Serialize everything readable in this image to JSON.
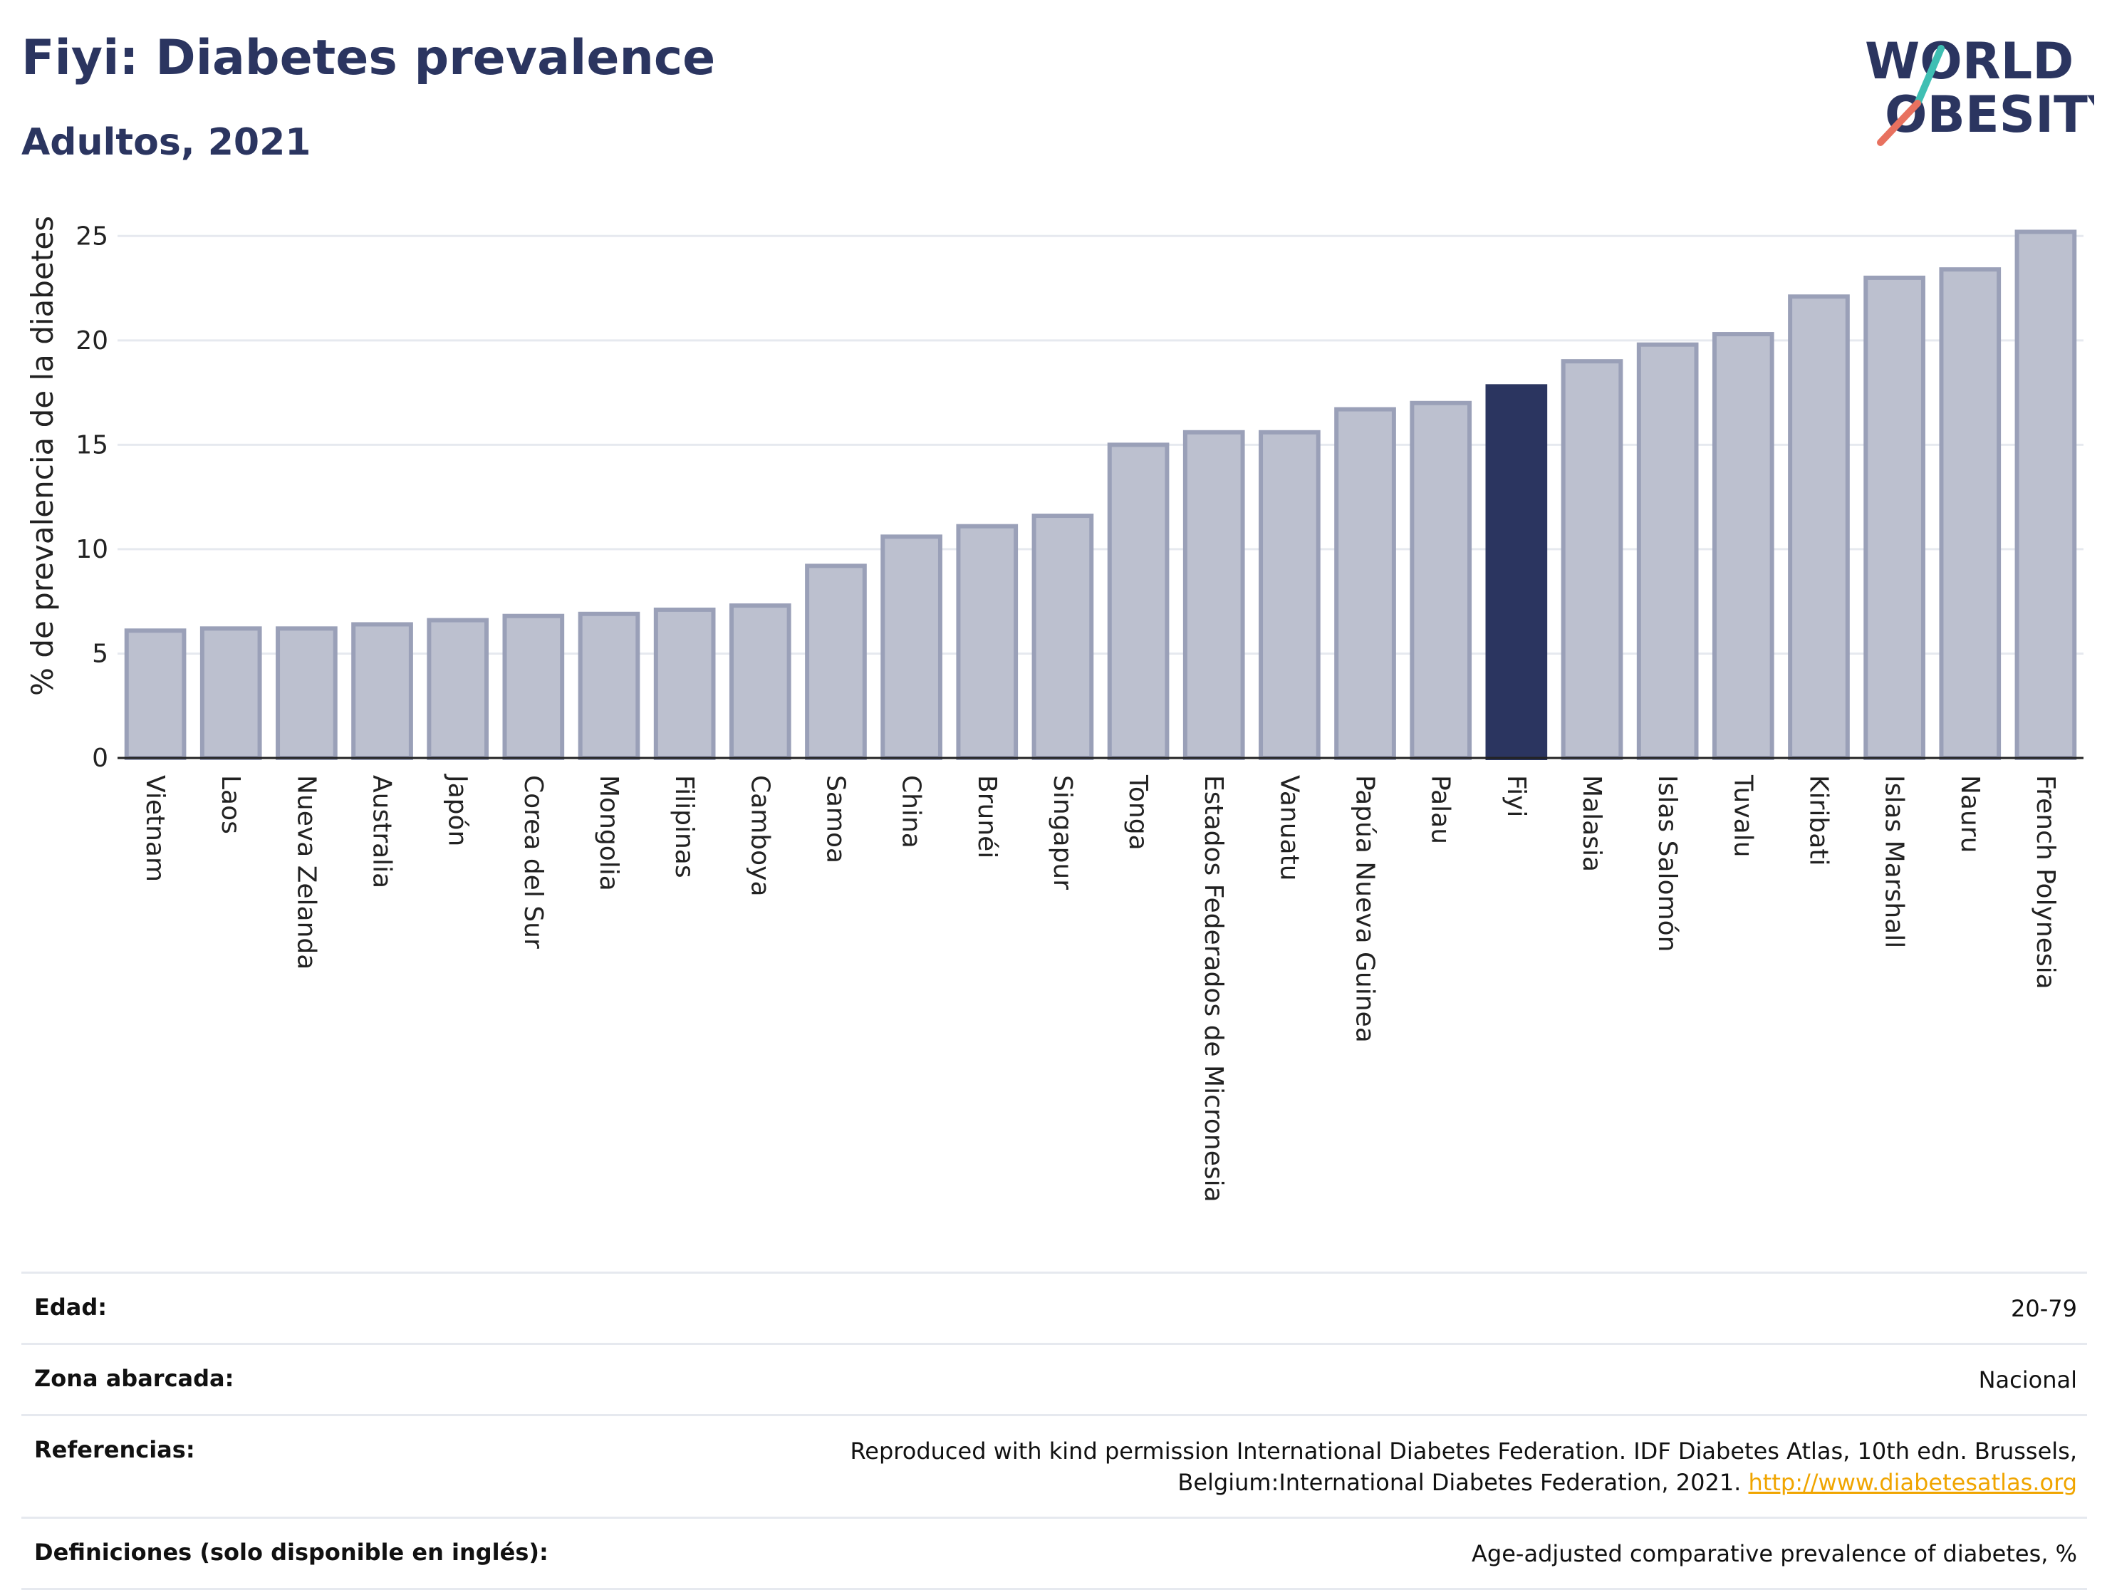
{
  "header": {
    "title": "Fiyi: Diabetes prevalence",
    "subtitle": "Adultos, 2021"
  },
  "logo": {
    "line1": "WORLD",
    "line2": "OBESITY",
    "accent_teal": "#3fbfb3",
    "accent_coral": "#e8715f"
  },
  "colors": {
    "bar": "#bcc0cf",
    "bar_border": "#9aa0b8",
    "highlight": "#2b3560",
    "grid": "#e6e9ef"
  },
  "chart_data": {
    "type": "bar",
    "ylabel": "% de prevalencia de la diabetes",
    "ylim": [
      0,
      26
    ],
    "yticks": [
      0,
      5,
      10,
      15,
      20,
      25
    ],
    "grid": true,
    "highlight": "Fiyi",
    "categories": [
      "Vietnam",
      "Laos",
      "Nueva Zelanda",
      "Australia",
      "Japón",
      "Corea del Sur",
      "Mongolia",
      "Filipinas",
      "Camboya",
      "Samoa",
      "China",
      "Brunéi",
      "Singapur",
      "Tonga",
      "Estados Federados de Micronesia",
      "Vanuatu",
      "Papúa Nueva Guinea",
      "Palau",
      "Fiyi",
      "Malasia",
      "Islas Salomón",
      "Tuvalu",
      "Kiribati",
      "Islas Marshall",
      "Nauru",
      "French Polynesia"
    ],
    "values": [
      6.1,
      6.2,
      6.2,
      6.4,
      6.6,
      6.8,
      6.9,
      7.1,
      7.3,
      9.2,
      10.6,
      11.1,
      11.6,
      15.0,
      15.6,
      15.6,
      16.7,
      17.0,
      17.8,
      19.0,
      19.8,
      20.3,
      22.1,
      23.0,
      23.4,
      25.2
    ]
  },
  "meta": {
    "rows": [
      {
        "key": "Edad:",
        "value": "20-79"
      },
      {
        "key": "Zona abarcada:",
        "value": "Nacional"
      },
      {
        "key": "Referencias:",
        "value": "Reproduced with kind permission International Diabetes Federation.  IDF Diabetes Atlas, 10th edn. Brussels, Belgium:International Diabetes Federation, 2021.",
        "link": "http://www.diabetesatlas.org"
      },
      {
        "key": "Definiciones (solo disponible en inglés):",
        "value": "Age-adjusted comparative prevalence of diabetes, %"
      }
    ]
  }
}
